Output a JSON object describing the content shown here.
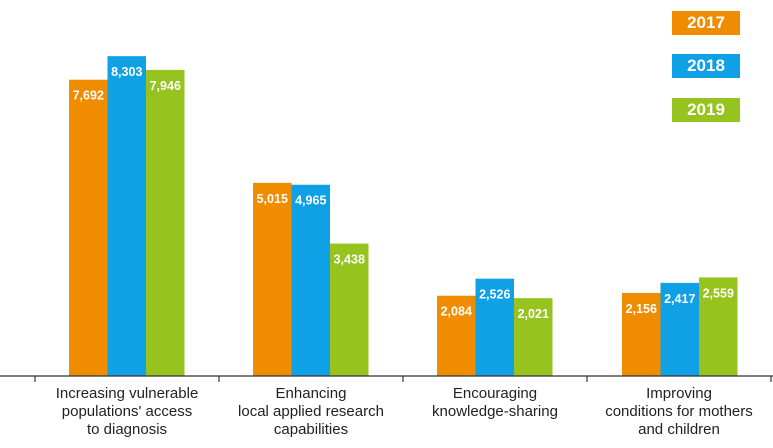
{
  "chart_data": {
    "type": "bar",
    "categories": [
      "Increasing vulnerable\npopulations' access\nto diagnosis",
      "Enhancing\nlocal applied research\ncapabilities",
      "Encouraging\nknowledge-sharing",
      "Improving\nconditions for mothers\nand children"
    ],
    "series": [
      {
        "name": "2017",
        "color": "#f08c00",
        "values": [
          7692,
          5015,
          2084,
          2156
        ],
        "labels": [
          "7,692",
          "5,015",
          "2,084",
          "2,156"
        ]
      },
      {
        "name": "2018",
        "color": "#0fa0e6",
        "values": [
          8303,
          4965,
          2526,
          2417
        ],
        "labels": [
          "8,303",
          "4,965",
          "2,526",
          "2,417"
        ]
      },
      {
        "name": "2019",
        "color": "#96c31e",
        "values": [
          7946,
          3438,
          2021,
          2559
        ],
        "labels": [
          "7,946",
          "3,438",
          "2,021",
          "2,559"
        ]
      }
    ],
    "legend_position": "top-right",
    "grid": false,
    "ylim": [
      0,
      9000
    ]
  }
}
